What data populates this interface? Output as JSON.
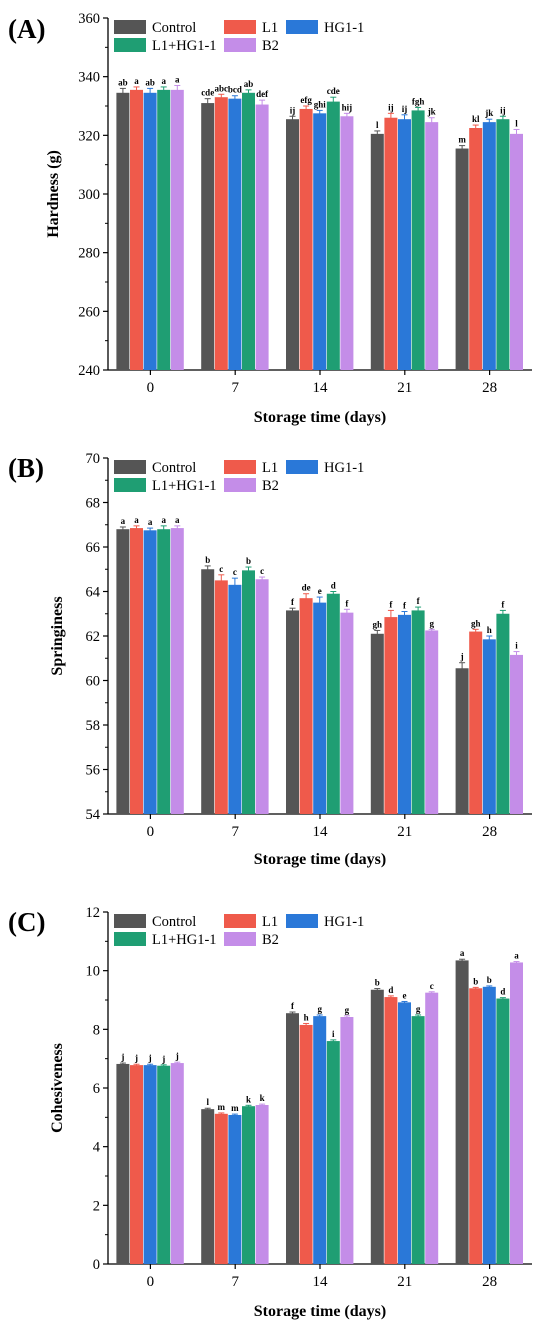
{
  "colors": {
    "Control": "#555555",
    "L1": "#ef5a4b",
    "HG1-1": "#2a78d8",
    "L1+HG1-1": "#1f9e73",
    "B2": "#c48de8"
  },
  "chart_data": [
    {
      "type": "bar",
      "panel_label": "(A)",
      "ylabel": "Hardness (g)",
      "xlabel": "Storage time (days)",
      "categories": [
        "0",
        "7",
        "14",
        "21",
        "28"
      ],
      "ylim": [
        240,
        360
      ],
      "yticks": [
        240,
        260,
        280,
        300,
        320,
        340,
        360
      ],
      "series": [
        {
          "name": "Control",
          "values": [
            334.5,
            331.0,
            325.5,
            320.5,
            315.5
          ],
          "errors": [
            1.5,
            1.5,
            1.0,
            1.0,
            1.0
          ],
          "labels": [
            "ab",
            "cde",
            "ij",
            "l",
            "m"
          ]
        },
        {
          "name": "L1",
          "values": [
            335.5,
            333.0,
            329.0,
            326.0,
            322.5
          ],
          "errors": [
            1.0,
            1.0,
            1.0,
            1.5,
            1.0
          ],
          "labels": [
            "a",
            "abc",
            "efg",
            "ij",
            "kl"
          ]
        },
        {
          "name": "HG1-1",
          "values": [
            334.5,
            332.5,
            327.5,
            325.5,
            324.5
          ],
          "errors": [
            1.5,
            1.0,
            1.0,
            1.5,
            1.0
          ],
          "labels": [
            "ab",
            "bcd",
            "ghi",
            "ij",
            "jk"
          ]
        },
        {
          "name": "L1+HG1-1",
          "values": [
            335.5,
            334.5,
            331.5,
            328.5,
            325.5
          ],
          "errors": [
            1.0,
            1.0,
            1.5,
            1.0,
            1.0
          ],
          "labels": [
            "a",
            "ab",
            "cde",
            "fgh",
            "ij"
          ]
        },
        {
          "name": "B2",
          "values": [
            335.5,
            330.5,
            326.5,
            324.5,
            320.5
          ],
          "errors": [
            1.5,
            1.5,
            1.0,
            1.5,
            1.5
          ],
          "labels": [
            "a",
            "def",
            "hij",
            "jk",
            "l"
          ]
        }
      ]
    },
    {
      "type": "bar",
      "panel_label": "(B)",
      "ylabel": "Springiness",
      "xlabel": "Storage time (days)",
      "categories": [
        "0",
        "7",
        "14",
        "21",
        "28"
      ],
      "ylim": [
        54,
        70
      ],
      "yticks": [
        54,
        56,
        58,
        60,
        62,
        64,
        66,
        68,
        70
      ],
      "series": [
        {
          "name": "Control",
          "values": [
            66.8,
            65.0,
            63.15,
            62.1,
            60.55
          ],
          "errors": [
            0.1,
            0.15,
            0.1,
            0.15,
            0.25
          ],
          "labels": [
            "a",
            "b",
            "f",
            "gh",
            "j"
          ]
        },
        {
          "name": "L1",
          "values": [
            66.85,
            64.5,
            63.7,
            62.85,
            62.2
          ],
          "errors": [
            0.1,
            0.25,
            0.2,
            0.3,
            0.1
          ],
          "labels": [
            "a",
            "c",
            "de",
            "f",
            "gh"
          ]
        },
        {
          "name": "HG1-1",
          "values": [
            66.75,
            64.3,
            63.5,
            62.95,
            61.85
          ],
          "errors": [
            0.1,
            0.3,
            0.25,
            0.15,
            0.15
          ],
          "labels": [
            "a",
            "c",
            "e",
            "f",
            "h"
          ]
        },
        {
          "name": "L1+HG1-1",
          "values": [
            66.8,
            64.95,
            63.9,
            63.15,
            63.0
          ],
          "errors": [
            0.15,
            0.15,
            0.1,
            0.15,
            0.15
          ],
          "labels": [
            "a",
            "b",
            "d",
            "f",
            "f"
          ]
        },
        {
          "name": "B2",
          "values": [
            66.85,
            64.55,
            63.05,
            62.25,
            61.15
          ],
          "errors": [
            0.1,
            0.1,
            0.15,
            0.05,
            0.15
          ],
          "labels": [
            "a",
            "c",
            "f",
            "g",
            "i"
          ]
        }
      ]
    },
    {
      "type": "bar",
      "panel_label": "(C)",
      "ylabel": "Cohesiveness",
      "xlabel": "Storage time (days)",
      "categories": [
        "0",
        "7",
        "14",
        "21",
        "28"
      ],
      "ylim": [
        0,
        12
      ],
      "yticks": [
        0,
        2,
        4,
        6,
        8,
        10,
        12
      ],
      "series": [
        {
          "name": "Control",
          "values": [
            6.82,
            5.28,
            8.55,
            9.35,
            10.35
          ],
          "errors": [
            0.03,
            0.03,
            0.04,
            0.04,
            0.04
          ],
          "labels": [
            "j",
            "l",
            "f",
            "b",
            "a"
          ]
        },
        {
          "name": "L1",
          "values": [
            6.78,
            5.12,
            8.15,
            9.1,
            9.4
          ],
          "errors": [
            0.03,
            0.03,
            0.05,
            0.04,
            0.03
          ],
          "labels": [
            "j",
            "m",
            "h",
            "d",
            "b"
          ]
        },
        {
          "name": "HG1-1",
          "values": [
            6.78,
            5.08,
            8.45,
            8.92,
            9.45
          ],
          "errors": [
            0.03,
            0.03,
            0.04,
            0.03,
            0.03
          ],
          "labels": [
            "j",
            "m",
            "g",
            "e",
            "b"
          ]
        },
        {
          "name": "L1+HG1-1",
          "values": [
            6.76,
            5.38,
            7.6,
            8.45,
            9.05
          ],
          "errors": [
            0.03,
            0.03,
            0.04,
            0.04,
            0.03
          ],
          "labels": [
            "j",
            "k",
            "i",
            "g",
            "d"
          ]
        },
        {
          "name": "B2",
          "values": [
            6.85,
            5.42,
            8.42,
            9.25,
            10.28
          ],
          "errors": [
            0.03,
            0.03,
            0.04,
            0.03,
            0.03
          ],
          "labels": [
            "j",
            "k",
            "g",
            "c",
            "a"
          ]
        }
      ]
    }
  ]
}
